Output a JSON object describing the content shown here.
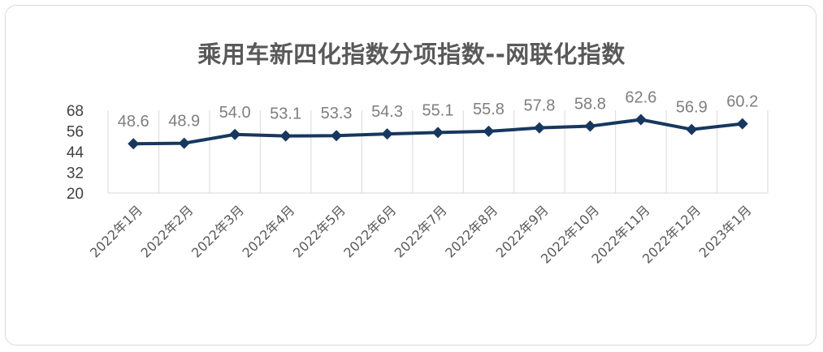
{
  "chart_data": {
    "type": "line",
    "title": "乘用车新四化指数分项指数--网联化指数",
    "categories": [
      "2022年1月",
      "2022年2月",
      "2022年3月",
      "2022年4月",
      "2022年5月",
      "2022年6月",
      "2022年7月",
      "2022年8月",
      "2022年9月",
      "2022年10月",
      "2022年11月",
      "2022年12月",
      "2023年1月"
    ],
    "values": [
      48.6,
      48.9,
      54.0,
      53.1,
      53.3,
      54.3,
      55.1,
      55.8,
      57.8,
      58.8,
      62.6,
      56.9,
      60.2
    ],
    "data_labels": [
      "48.6",
      "48.9",
      "54.0",
      "53.1",
      "53.3",
      "54.3",
      "55.1",
      "55.8",
      "57.8",
      "58.8",
      "62.6",
      "56.9",
      "60.2"
    ],
    "yticks": [
      "20",
      "32",
      "44",
      "56",
      "68"
    ],
    "ylim": [
      20,
      68
    ],
    "grid": "vertical",
    "line_color": "#17375e",
    "marker": "diamond"
  }
}
